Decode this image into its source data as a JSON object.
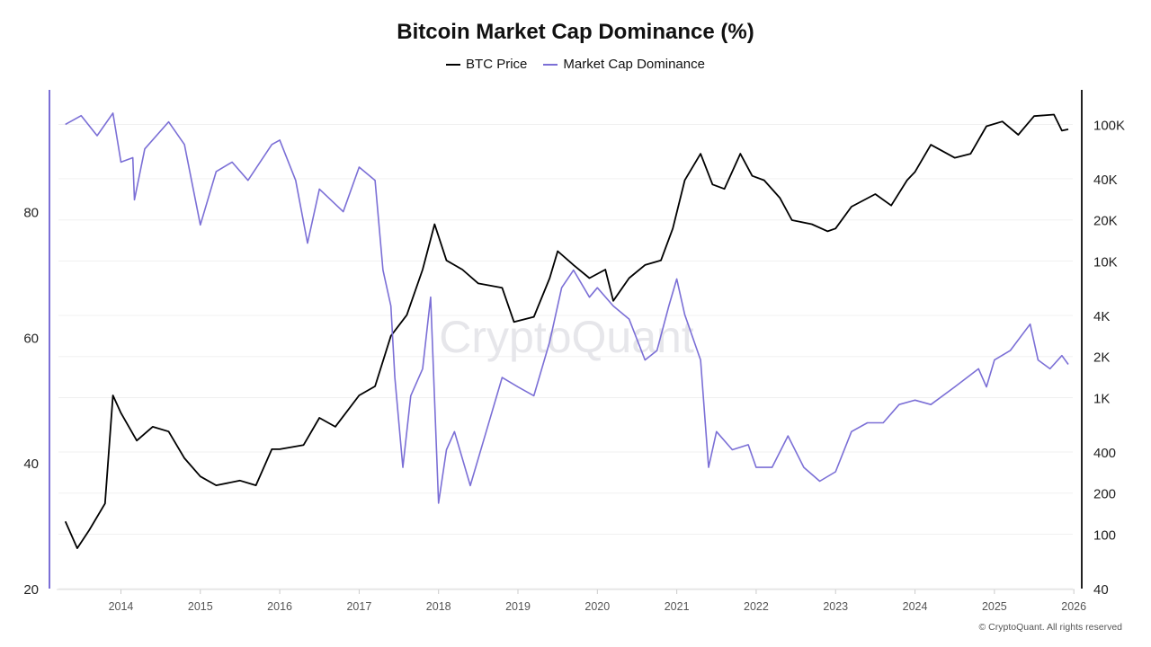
{
  "chart_data": {
    "type": "line",
    "title": "Bitcoin Market Cap Dominance (%)",
    "watermark": "CryptoQuant",
    "footer": "© CryptoQuant. All rights reserved",
    "legend_placement": "top-center",
    "grid": true,
    "colors": {
      "btc": "#000000",
      "dominance": "#7b6fd6"
    },
    "x_ticks": [
      "2014",
      "2015",
      "2016",
      "2017",
      "2018",
      "2019",
      "2020",
      "2021",
      "2022",
      "2023",
      "2024",
      "2025",
      "2026"
    ],
    "xlim": [
      2013.1,
      2026.1
    ],
    "y_left": {
      "ticks": [
        20,
        40,
        60,
        80
      ],
      "lim": [
        20,
        99.4
      ],
      "scale": "linear"
    },
    "y_right": {
      "ticks": [
        40,
        100,
        200,
        400,
        1000,
        2000,
        4000,
        10000,
        20000,
        40000,
        100000
      ],
      "tick_labels": [
        "40",
        "100",
        "200",
        "400",
        "1K",
        "2K",
        "4K",
        "10K",
        "20K",
        "40K",
        "100K"
      ],
      "lim": [
        40,
        179000
      ],
      "scale": "log"
    },
    "series": [
      {
        "name": "BTC Price",
        "axis": "right",
        "x": [
          2013.3,
          2013.45,
          2013.6,
          2013.8,
          2013.9,
          2014.0,
          2014.2,
          2014.4,
          2014.6,
          2014.8,
          2015.0,
          2015.2,
          2015.5,
          2015.7,
          2015.9,
          2016.0,
          2016.3,
          2016.5,
          2016.7,
          2017.0,
          2017.2,
          2017.4,
          2017.6,
          2017.8,
          2017.95,
          2018.1,
          2018.3,
          2018.5,
          2018.8,
          2018.95,
          2019.2,
          2019.4,
          2019.5,
          2019.7,
          2019.9,
          2020.1,
          2020.2,
          2020.4,
          2020.6,
          2020.8,
          2020.95,
          2021.1,
          2021.3,
          2021.45,
          2021.6,
          2021.8,
          2021.95,
          2022.1,
          2022.3,
          2022.45,
          2022.7,
          2022.9,
          2023.0,
          2023.2,
          2023.5,
          2023.7,
          2023.9,
          2024.0,
          2024.2,
          2024.5,
          2024.7,
          2024.9,
          2025.1,
          2025.3,
          2025.5,
          2025.75,
          2025.85,
          2025.93
        ],
        "values": [
          124,
          79,
          107,
          168,
          1038,
          772,
          485,
          612,
          565,
          360,
          265,
          228,
          247,
          228,
          419,
          419,
          450,
          711,
          612,
          1038,
          1210,
          2830,
          4020,
          8660,
          18600,
          10100,
          8660,
          6850,
          6370,
          3580,
          3900,
          7500,
          11800,
          9350,
          7500,
          8660,
          5110,
          7500,
          9350,
          10100,
          17300,
          39000,
          61000,
          36300,
          33700,
          61000,
          42000,
          39000,
          28900,
          19900,
          18600,
          16500,
          17300,
          25000,
          30900,
          25500,
          39000,
          45000,
          71000,
          57000,
          61000,
          97000,
          105000,
          84000,
          115000,
          118000,
          90000,
          92000
        ]
      },
      {
        "name": "Market Cap Dominance",
        "axis": "left",
        "x": [
          2013.3,
          2013.5,
          2013.7,
          2013.9,
          2014.0,
          2014.15,
          2014.17,
          2014.3,
          2014.6,
          2014.8,
          2015.0,
          2015.2,
          2015.4,
          2015.6,
          2015.9,
          2016.0,
          2016.2,
          2016.35,
          2016.5,
          2016.8,
          2017.0,
          2017.2,
          2017.3,
          2017.4,
          2017.45,
          2017.55,
          2017.65,
          2017.8,
          2017.9,
          2018.0,
          2018.1,
          2018.2,
          2018.4,
          2018.6,
          2018.8,
          2019.0,
          2019.2,
          2019.4,
          2019.55,
          2019.7,
          2019.9,
          2020.0,
          2020.2,
          2020.4,
          2020.6,
          2020.75,
          2020.9,
          2021.0,
          2021.1,
          2021.3,
          2021.4,
          2021.5,
          2021.7,
          2021.9,
          2022.0,
          2022.2,
          2022.4,
          2022.6,
          2022.8,
          2023.0,
          2023.2,
          2023.4,
          2023.6,
          2023.8,
          2024.0,
          2024.2,
          2024.5,
          2024.8,
          2024.9,
          2025.0,
          2025.2,
          2025.45,
          2025.55,
          2025.7,
          2025.85,
          2025.93
        ],
        "values": [
          93.9,
          95.3,
          92.1,
          95.7,
          87.9,
          88.6,
          81.9,
          90,
          94.3,
          90.7,
          77.9,
          86.4,
          87.9,
          85,
          90.7,
          91.4,
          85,
          75,
          83.6,
          80,
          87.1,
          85,
          70.7,
          65,
          53.6,
          39.3,
          50.7,
          55,
          66.4,
          33.6,
          42.1,
          45,
          36.4,
          45,
          53.6,
          52.1,
          50.7,
          59.3,
          67.9,
          70.7,
          66.4,
          67.9,
          65,
          62.9,
          56.4,
          57.9,
          65,
          69.3,
          63.6,
          56.4,
          39.3,
          45,
          42.1,
          42.9,
          39.3,
          39.3,
          44.3,
          39.3,
          37.1,
          38.6,
          45,
          46.4,
          46.4,
          49.3,
          50,
          49.3,
          52.1,
          55,
          52.1,
          56.4,
          57.9,
          62.1,
          56.4,
          55,
          57.1,
          55.7
        ]
      }
    ]
  }
}
